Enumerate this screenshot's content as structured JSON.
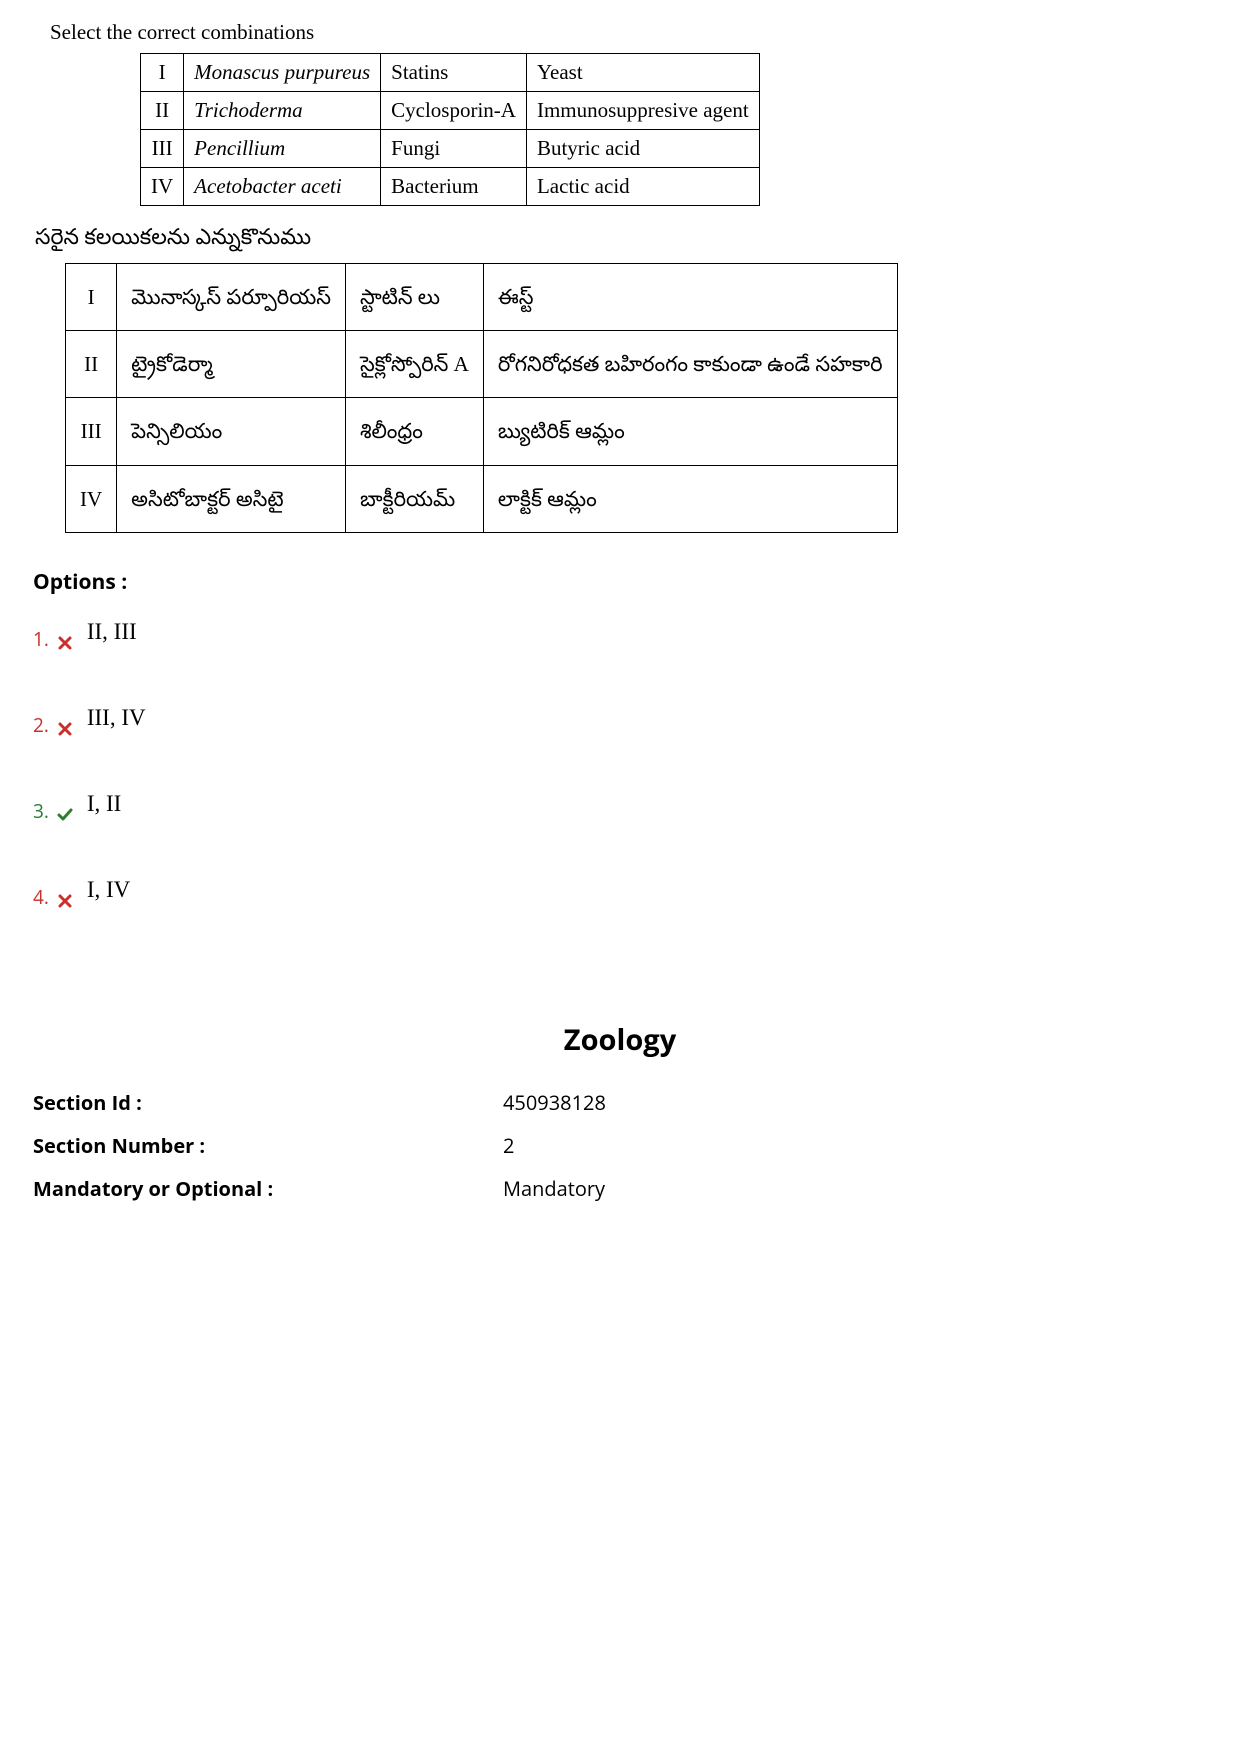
{
  "question": {
    "intro_en": "Select the correct combinations",
    "intro_te": "సరైన కలయికలను ఎన్నుకొనుము",
    "table_en": {
      "rows": [
        [
          "I",
          "Monascus purpureus",
          "Statins",
          "Yeast"
        ],
        [
          "II",
          "Trichoderma",
          "Cyclosporin-A",
          "Immunosuppresive agent"
        ],
        [
          "III",
          "Pencillium",
          "Fungi",
          "Butyric acid"
        ],
        [
          "IV",
          "Acetobacter aceti",
          "Bacterium",
          "Lactic acid"
        ]
      ],
      "italic_cols": [
        1
      ]
    },
    "table_te": {
      "rows": [
        [
          "I",
          "మొనాస్కస్ పర్పూరియస్",
          "స్టాటిన్ లు",
          "ఈస్ట్"
        ],
        [
          "II",
          "ట్రైకోడెర్మా",
          "సైక్లోస్పోరిన్ A",
          "రోగనిరోధకత బహిరంగం కాకుండా ఉండే సహకారి"
        ],
        [
          "III",
          "పెన్సిలియం",
          "శిలీంధ్రం",
          "బ్యుటిరిక్ ఆమ్లం"
        ],
        [
          "IV",
          "అసిటోబాక్టర్ అసిటై",
          "బాక్టీరియమ్",
          "లాక్టిక్ ఆమ్లం"
        ]
      ]
    }
  },
  "options": {
    "label": "Options :",
    "items": [
      {
        "number": "1.",
        "text": "II, III",
        "correct": false
      },
      {
        "number": "2.",
        "text": "III, IV",
        "correct": false
      },
      {
        "number": "3.",
        "text": "I, II",
        "correct": true
      },
      {
        "number": "4.",
        "text": "I, IV",
        "correct": false
      }
    ]
  },
  "section": {
    "title": "Zoology",
    "meta": [
      {
        "label": "Section Id :",
        "value": "450938128"
      },
      {
        "label": "Section Number :",
        "value": "2"
      },
      {
        "label": "Mandatory or Optional :",
        "value": "Mandatory"
      }
    ]
  },
  "colors": {
    "incorrect": "#c9302c",
    "correct": "#2e7d32"
  }
}
